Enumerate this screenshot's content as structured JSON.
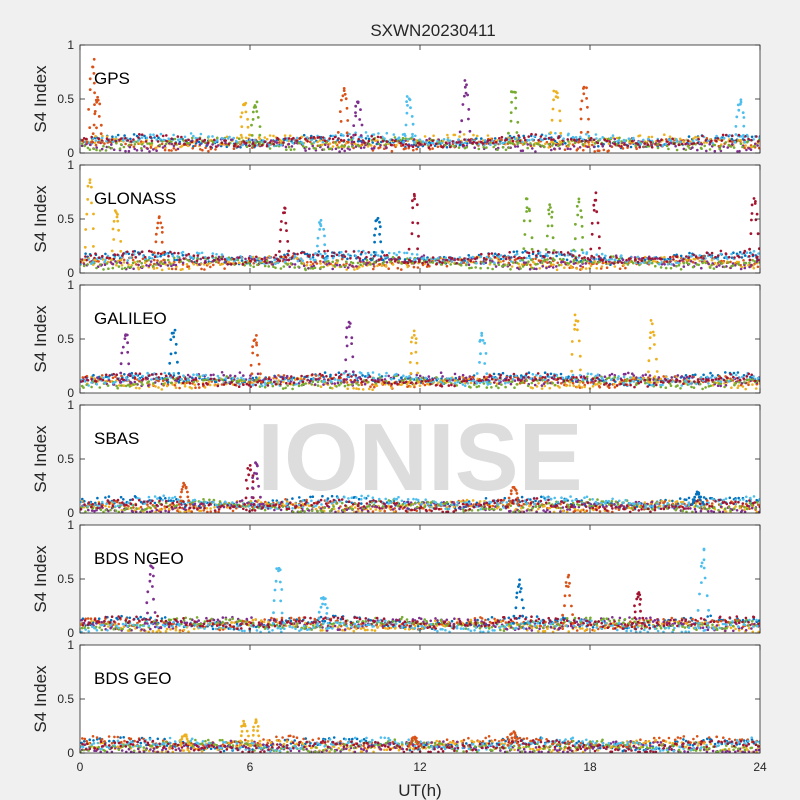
{
  "chart_data": {
    "type": "scatter",
    "title": "SXWN20230411",
    "xlabel": "UT(h)",
    "ylabel": "S4 Index",
    "xlim": [
      0,
      24
    ],
    "ylim": [
      0,
      1
    ],
    "x_ticks": [
      0,
      6,
      12,
      18,
      24
    ],
    "y_ticks": [
      0,
      0.5,
      1
    ],
    "grid": false,
    "watermark": "IONISE",
    "series_colors": [
      "#0072BD",
      "#D95319",
      "#EDB120",
      "#7E2F8E",
      "#77AC30",
      "#4DBEEE",
      "#A2142F"
    ],
    "panels": [
      {
        "label": "GPS",
        "baseline": 0.1,
        "peaks": [
          {
            "x": 0.45,
            "y": 0.9,
            "c": 1
          },
          {
            "x": 0.6,
            "y": 0.55,
            "c": 1
          },
          {
            "x": 5.8,
            "y": 0.5,
            "c": 2
          },
          {
            "x": 6.2,
            "y": 0.5,
            "c": 4
          },
          {
            "x": 9.3,
            "y": 0.63,
            "c": 1
          },
          {
            "x": 9.8,
            "y": 0.5,
            "c": 3
          },
          {
            "x": 11.6,
            "y": 0.55,
            "c": 5
          },
          {
            "x": 13.6,
            "y": 0.68,
            "c": 3
          },
          {
            "x": 15.3,
            "y": 0.62,
            "c": 4
          },
          {
            "x": 16.8,
            "y": 0.63,
            "c": 2
          },
          {
            "x": 17.8,
            "y": 0.65,
            "c": 1
          },
          {
            "x": 23.3,
            "y": 0.5,
            "c": 5
          }
        ]
      },
      {
        "label": "GLONASS",
        "baseline": 0.12,
        "peaks": [
          {
            "x": 0.35,
            "y": 0.88,
            "c": 2
          },
          {
            "x": 1.3,
            "y": 0.62,
            "c": 2
          },
          {
            "x": 2.8,
            "y": 0.55,
            "c": 1
          },
          {
            "x": 7.2,
            "y": 0.62,
            "c": 6
          },
          {
            "x": 8.5,
            "y": 0.5,
            "c": 5
          },
          {
            "x": 10.5,
            "y": 0.55,
            "c": 0
          },
          {
            "x": 11.8,
            "y": 0.77,
            "c": 6
          },
          {
            "x": 15.8,
            "y": 0.72,
            "c": 4
          },
          {
            "x": 16.6,
            "y": 0.68,
            "c": 4
          },
          {
            "x": 17.6,
            "y": 0.7,
            "c": 4
          },
          {
            "x": 18.2,
            "y": 0.75,
            "c": 6
          },
          {
            "x": 23.8,
            "y": 0.75,
            "c": 6
          }
        ]
      },
      {
        "label": "GALILEO",
        "baseline": 0.1,
        "peaks": [
          {
            "x": 1.6,
            "y": 0.58,
            "c": 3
          },
          {
            "x": 3.3,
            "y": 0.6,
            "c": 0
          },
          {
            "x": 6.2,
            "y": 0.55,
            "c": 1
          },
          {
            "x": 9.5,
            "y": 0.7,
            "c": 3
          },
          {
            "x": 11.8,
            "y": 0.58,
            "c": 2
          },
          {
            "x": 14.2,
            "y": 0.58,
            "c": 5
          },
          {
            "x": 17.5,
            "y": 0.75,
            "c": 2
          },
          {
            "x": 20.2,
            "y": 0.68,
            "c": 2
          }
        ]
      },
      {
        "label": "SBAS",
        "baseline": 0.08,
        "peaks": [
          {
            "x": 3.7,
            "y": 0.28,
            "c": 1
          },
          {
            "x": 6.0,
            "y": 0.45,
            "c": 6
          },
          {
            "x": 6.2,
            "y": 0.5,
            "c": 3
          },
          {
            "x": 15.3,
            "y": 0.25,
            "c": 1
          },
          {
            "x": 21.8,
            "y": 0.2,
            "c": 0
          }
        ]
      },
      {
        "label": "BDS NGEO",
        "baseline": 0.09,
        "peaks": [
          {
            "x": 2.5,
            "y": 0.65,
            "c": 3
          },
          {
            "x": 7.0,
            "y": 0.65,
            "c": 5
          },
          {
            "x": 8.6,
            "y": 0.35,
            "c": 5
          },
          {
            "x": 15.5,
            "y": 0.5,
            "c": 0
          },
          {
            "x": 17.2,
            "y": 0.55,
            "c": 1
          },
          {
            "x": 19.7,
            "y": 0.38,
            "c": 6
          },
          {
            "x": 22.0,
            "y": 0.8,
            "c": 5
          }
        ]
      },
      {
        "label": "BDS GEO",
        "baseline": 0.07,
        "peaks": [
          {
            "x": 3.7,
            "y": 0.18,
            "c": 2
          },
          {
            "x": 5.8,
            "y": 0.3,
            "c": 2
          },
          {
            "x": 6.2,
            "y": 0.32,
            "c": 2
          },
          {
            "x": 11.8,
            "y": 0.15,
            "c": 1
          },
          {
            "x": 15.3,
            "y": 0.2,
            "c": 1
          }
        ]
      }
    ]
  }
}
